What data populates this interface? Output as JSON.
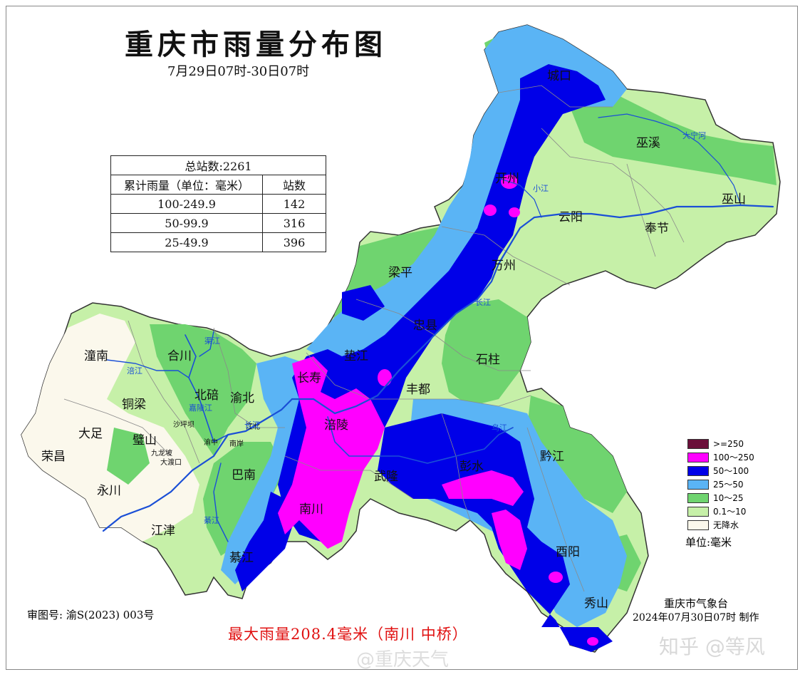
{
  "title": "重庆市雨量分布图",
  "subtitle": "7月29日07时-30日07时",
  "stats_table": {
    "total": "总站数:2261",
    "col1": "累计雨量（单位：毫米）",
    "col2": "站数",
    "rows": [
      {
        "range": "100-249.9",
        "count": "142"
      },
      {
        "range": "50-99.9",
        "count": "316"
      },
      {
        "range": "25-49.9",
        "count": "396"
      }
    ]
  },
  "legend": {
    "items": [
      {
        "label": ">=250",
        "color": "#6b0f3a"
      },
      {
        "label": "100～250",
        "color": "#ff00ff"
      },
      {
        "label": "50～100",
        "color": "#0000e8"
      },
      {
        "label": "25～50",
        "color": "#5ab4f5"
      },
      {
        "label": "10～25",
        "color": "#6fd46f"
      },
      {
        "label": "0.1～10",
        "color": "#c6f0a8"
      },
      {
        "label": "无降水",
        "color": "#fbf8ec"
      }
    ],
    "unit": "单位:毫米"
  },
  "approval": "审图号: 渝S(2023) 003号",
  "org": "重庆市气象台",
  "made": "2024年07月30日07时 制作",
  "max_rain": "最大雨量208.4毫米（南川 中桥）",
  "watermark_weibo": "@重庆天气",
  "watermark_zhihu": "知乎 @等风",
  "places": {
    "chengkou": "城口",
    "wuxi": "巫溪",
    "kaizhou": "开州",
    "wushan": "巫山",
    "yunyang": "云阳",
    "fengjie": "奉节",
    "liangping": "梁平",
    "wanzhou": "万州",
    "zhongxian": "忠县",
    "dianjiang": "垫江",
    "shizhu": "石柱",
    "tongnan": "潼南",
    "hechuan": "合川",
    "changshou": "长寿",
    "fengdu": "丰都",
    "tongliang": "铜梁",
    "beibei": "北碚",
    "yubei": "渝北",
    "fuling": "涪陵",
    "dazu": "大足",
    "bishan": "璧山",
    "rongchang": "荣昌",
    "banan": "巴南",
    "wulong": "武隆",
    "pengshui": "彭水",
    "qianjiang": "黔江",
    "yongchuan": "永川",
    "jiangjin": "江津",
    "nanchuan": "南川",
    "qijiang": "綦江",
    "youyang": "酉阳",
    "xiushan": "秀山",
    "shapingba": "沙坪坝",
    "jiulongpo": "九龙坡",
    "dadukou": "大渡口",
    "nanan": "南岸",
    "jiangbei": "江北",
    "yuzhong": "渝中"
  },
  "rivers": {
    "daning": "大宁河",
    "changjiang1": "长江",
    "changjiang2": "长江",
    "fujiang": "涪江",
    "jialing": "嘉陵江",
    "qujiang": "渠江",
    "qi": "綦江",
    "wujiang": "乌江",
    "xiaojiang": "小江"
  }
}
